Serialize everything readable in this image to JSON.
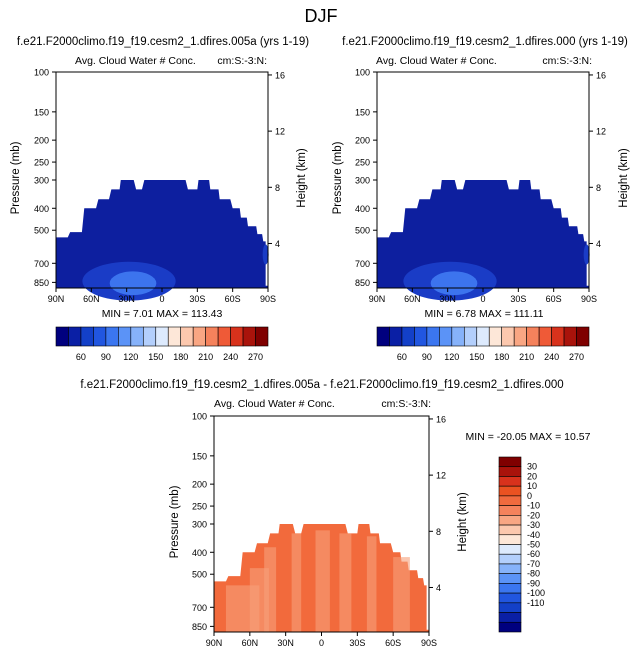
{
  "figure": {
    "title": "DJF"
  },
  "colors": {
    "top_scale": [
      "#00007f",
      "#0a1fa5",
      "#1340c8",
      "#2156e0",
      "#3b76f0",
      "#5b93f7",
      "#86b2fa",
      "#b3cffc",
      "#ddeafd",
      "#fde7d8",
      "#fcc8ae",
      "#f9a683",
      "#f5825c",
      "#ef5a37",
      "#d8321c",
      "#a9130b",
      "#7f0000"
    ],
    "diff_scale": [
      "#00007f",
      "#0a1fa5",
      "#1340c8",
      "#2156e0",
      "#3b76f0",
      "#5b93f7",
      "#86b2fa",
      "#b3cffc",
      "#ddeafd",
      "#fde7d8",
      "#fcc8ae",
      "#f9a683",
      "#f5825c",
      "#f06a3e",
      "#ea5221",
      "#d8321c",
      "#a9130b",
      "#7f0000"
    ],
    "field_dark": "#0d1f9f",
    "field_mid": "#1a3cc6",
    "field_light": "#3c74ee",
    "diff_fill": "#f26a3c",
    "diff_light": "#f7a07a"
  },
  "chart_data": [
    {
      "type": "heatmap",
      "case": "f.e21.F2000climo.f19_f19.cesm2_1.dfires.005a (yrs 1-19)",
      "title": "Avg. Cloud Water # Conc.",
      "tag": "cm:S:-3:N:",
      "ylabel": "Pressure (mb)",
      "ylabel_right": "Height (km)",
      "pressure_ticks": [
        "100",
        "150",
        "200",
        "250",
        "300",
        "400",
        "500",
        "700",
        "850"
      ],
      "height_ticks": [
        "16",
        "12",
        "8",
        "4"
      ],
      "lat_ticks": [
        "90N",
        "60N",
        "30N",
        "0",
        "30S",
        "60S",
        "90S"
      ],
      "stats": "MIN =  7.01   MAX = 113.43",
      "colorbar_labels": [
        "60",
        "90",
        "120",
        "150",
        "180",
        "210",
        "240",
        "270"
      ]
    },
    {
      "type": "heatmap",
      "case": "f.e21.F2000climo.f19_f19.cesm2_1.dfires.000 (yrs 1-19)",
      "title": "Avg. Cloud Water # Conc.",
      "tag": "cm:S:-3:N:",
      "ylabel": "Pressure (mb)",
      "ylabel_right": "Height (km)",
      "pressure_ticks": [
        "100",
        "150",
        "200",
        "250",
        "300",
        "400",
        "500",
        "700",
        "850"
      ],
      "height_ticks": [
        "16",
        "12",
        "8",
        "4"
      ],
      "lat_ticks": [
        "90N",
        "60N",
        "30N",
        "0",
        "30S",
        "60S",
        "90S"
      ],
      "stats": "MIN =  6.78   MAX = 111.11",
      "colorbar_labels": [
        "60",
        "90",
        "120",
        "150",
        "180",
        "210",
        "240",
        "270"
      ]
    },
    {
      "type": "heatmap",
      "case": "f.e21.F2000climo.f19_f19.cesm2_1.dfires.005a - f.e21.F2000climo.f19_f19.cesm2_1.dfires.000",
      "title": "Avg. Cloud Water # Conc.",
      "tag": "cm:S:-3:N:",
      "ylabel": "Pressure (mb)",
      "ylabel_right": "Height (km)",
      "pressure_ticks": [
        "100",
        "150",
        "200",
        "250",
        "300",
        "400",
        "500",
        "700",
        "850"
      ],
      "height_ticks": [
        "16",
        "12",
        "8",
        "4"
      ],
      "lat_ticks": [
        "90N",
        "60N",
        "30N",
        "0",
        "30S",
        "60S",
        "90S"
      ],
      "stats": "MIN = -20.05  MAX = 10.57",
      "colorbar_labels": [
        "30",
        "20",
        "10",
        "0",
        "-10",
        "-20",
        "-30",
        "-40",
        "-50",
        "-60",
        "-70",
        "-80",
        "-90",
        "-100",
        "-110"
      ]
    }
  ]
}
